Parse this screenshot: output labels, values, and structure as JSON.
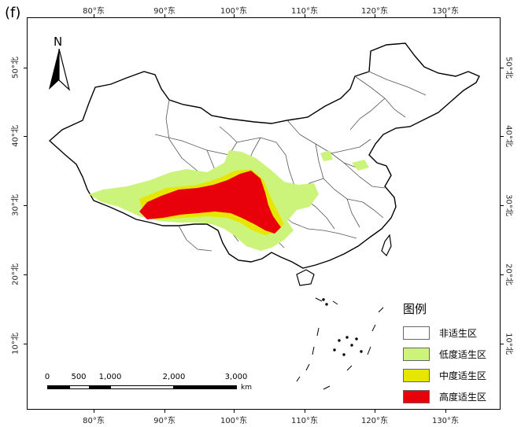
{
  "panel_label": "(f)",
  "axes": {
    "top_ticks": [
      "80°东",
      "90°东",
      "100°东",
      "110°东",
      "120°东",
      "130°东"
    ],
    "bottom_ticks": [
      "80°东",
      "90°东",
      "100°东",
      "110°东",
      "120°东",
      "130°东"
    ],
    "left_ticks": [
      "50°北",
      "40°北",
      "30°北",
      "20°北",
      "10°北"
    ],
    "right_ticks": [
      "50°北",
      "40°北",
      "30°北",
      "20°北",
      "10°北"
    ]
  },
  "north_arrow": {
    "letter": "N",
    "icon": "north-arrow-icon"
  },
  "legend": {
    "title": "图例",
    "items": [
      {
        "label": "非适生区",
        "color": "#ffffff"
      },
      {
        "label": "低度适生区",
        "color": "#ccf47a"
      },
      {
        "label": "中度适生区",
        "color": "#e6e600"
      },
      {
        "label": "高度适生区",
        "color": "#e8000b"
      }
    ]
  },
  "scale_bar": {
    "labels": [
      "0",
      "500",
      "1,000",
      "2,000",
      "3,000"
    ],
    "unit": "km"
  },
  "colors": {
    "low": "#ccf47a",
    "medium": "#e6e600",
    "high": "#e8000b",
    "border": "#000000",
    "province": "#555555"
  }
}
